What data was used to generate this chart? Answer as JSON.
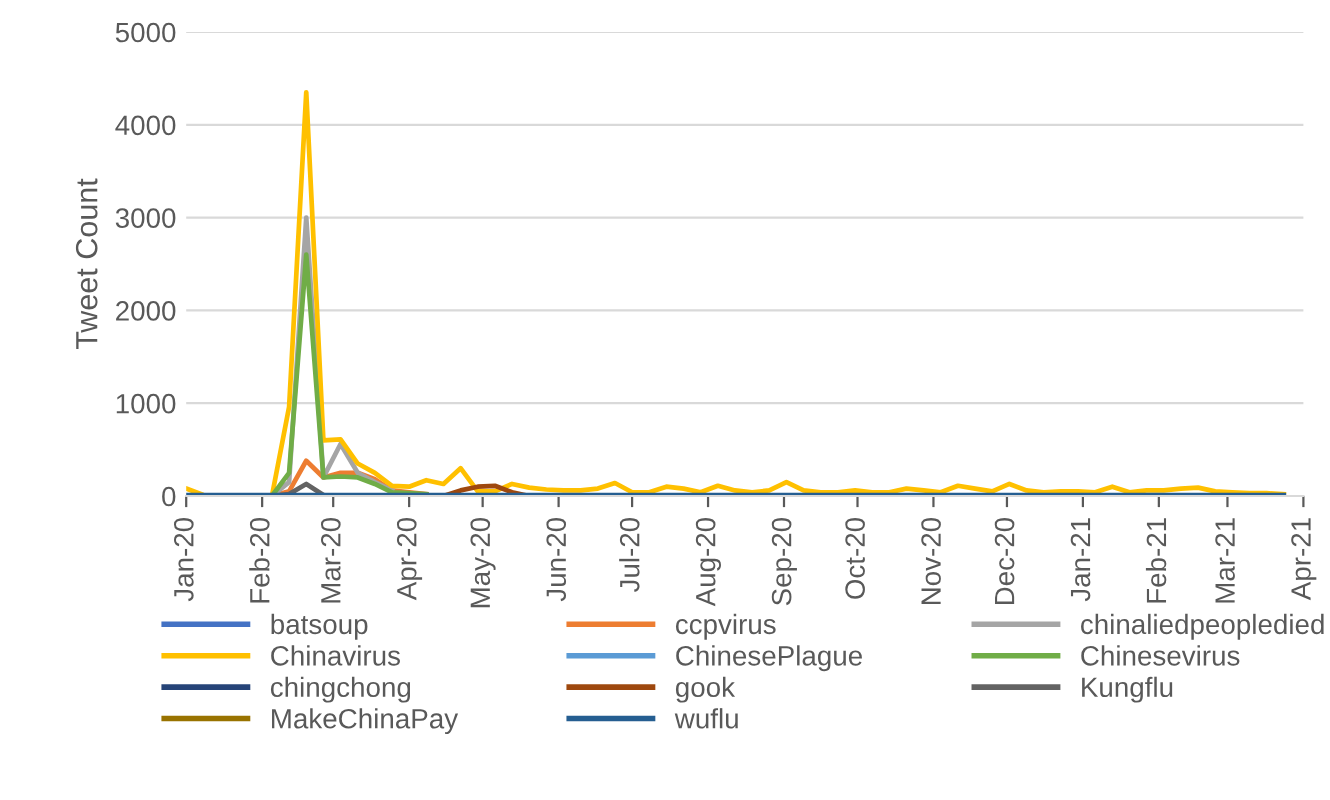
{
  "chart_data": {
    "type": "line",
    "ylabel": "Tweet Count",
    "x": [
      "2020-01-01",
      "2020-01-08",
      "2020-01-15",
      "2020-01-22",
      "2020-01-29",
      "2020-02-05",
      "2020-02-12",
      "2020-02-19",
      "2020-02-26",
      "2020-03-04",
      "2020-03-11",
      "2020-03-18",
      "2020-03-25",
      "2020-04-01",
      "2020-04-08",
      "2020-04-15",
      "2020-04-22",
      "2020-04-29",
      "2020-05-06",
      "2020-05-13",
      "2020-05-20",
      "2020-05-27",
      "2020-06-03",
      "2020-06-10",
      "2020-06-17",
      "2020-06-24",
      "2020-07-01",
      "2020-07-08",
      "2020-07-15",
      "2020-07-22",
      "2020-07-29",
      "2020-08-05",
      "2020-08-12",
      "2020-08-19",
      "2020-08-26",
      "2020-09-02",
      "2020-09-09",
      "2020-09-16",
      "2020-09-23",
      "2020-09-30",
      "2020-10-07",
      "2020-10-14",
      "2020-10-21",
      "2020-10-28",
      "2020-11-04",
      "2020-11-11",
      "2020-11-18",
      "2020-11-25",
      "2020-12-02",
      "2020-12-09",
      "2020-12-16",
      "2020-12-23",
      "2020-12-30",
      "2021-01-06",
      "2021-01-13",
      "2021-01-20",
      "2021-01-27",
      "2021-02-03",
      "2021-02-10",
      "2021-02-17",
      "2021-02-24",
      "2021-03-03",
      "2021-03-10",
      "2021-03-17",
      "2021-03-24"
    ],
    "xlim": [
      "2020-01-01",
      "2021-04-01"
    ],
    "xticks": [
      {
        "value": "2020-01-01",
        "label": "Jan-20"
      },
      {
        "value": "2020-02-01",
        "label": "Feb-20"
      },
      {
        "value": "2020-03-01",
        "label": "Mar-20"
      },
      {
        "value": "2020-04-01",
        "label": "Apr-20"
      },
      {
        "value": "2020-05-01",
        "label": "May-20"
      },
      {
        "value": "2020-06-01",
        "label": "Jun-20"
      },
      {
        "value": "2020-07-01",
        "label": "Jul-20"
      },
      {
        "value": "2020-08-01",
        "label": "Aug-20"
      },
      {
        "value": "2020-09-01",
        "label": "Sep-20"
      },
      {
        "value": "2020-10-01",
        "label": "Oct-20"
      },
      {
        "value": "2020-11-01",
        "label": "Nov-20"
      },
      {
        "value": "2020-12-01",
        "label": "Dec-20"
      },
      {
        "value": "2021-01-01",
        "label": "Jan-21"
      },
      {
        "value": "2021-02-01",
        "label": "Feb-21"
      },
      {
        "value": "2021-03-01",
        "label": "Mar-21"
      },
      {
        "value": "2021-04-01",
        "label": "Apr-21"
      }
    ],
    "ylim": [
      0,
      5000
    ],
    "yticks": [
      0,
      1000,
      2000,
      3000,
      4000,
      5000
    ],
    "grid": "y",
    "legend": "bottom",
    "marker": "none",
    "line_style": "solid",
    "series": [
      {
        "name": "batsoup",
        "color": "#4472c4",
        "values": [
          null,
          null,
          null,
          null,
          null,
          null,
          null,
          null,
          null,
          null,
          null,
          null,
          null,
          null,
          null,
          null,
          null,
          null,
          null,
          null,
          null,
          null,
          null,
          null,
          null,
          null,
          null,
          null,
          null,
          null,
          null,
          null,
          null,
          null,
          null,
          null,
          null,
          null,
          null,
          null,
          null,
          null,
          null,
          null,
          null,
          null,
          null,
          null,
          null,
          null,
          null,
          null,
          null,
          null,
          null,
          null,
          null,
          null,
          null,
          null,
          null,
          null,
          null,
          null,
          null
        ]
      },
      {
        "name": "ccpvirus",
        "color": "#ed7d31",
        "values": [
          null,
          null,
          null,
          null,
          null,
          0,
          50,
          380,
          200,
          250,
          250,
          180,
          60,
          40,
          20,
          null,
          null,
          null,
          null,
          null,
          null,
          null,
          null,
          null,
          null,
          null,
          null,
          null,
          null,
          null,
          null,
          null,
          null,
          null,
          null,
          null,
          null,
          null,
          null,
          null,
          null,
          null,
          null,
          null,
          null,
          null,
          null,
          null,
          null,
          null,
          null,
          null,
          null,
          null,
          null,
          null,
          null,
          null,
          null,
          null,
          null,
          null,
          null,
          null,
          null
        ]
      },
      {
        "name": "chinaliedpeopledied",
        "color": "#a5a5a5",
        "values": [
          null,
          null,
          null,
          null,
          null,
          0,
          150,
          3000,
          200,
          560,
          250,
          150,
          60,
          null,
          null,
          null,
          null,
          null,
          null,
          null,
          null,
          null,
          null,
          null,
          null,
          null,
          null,
          null,
          null,
          null,
          null,
          null,
          null,
          null,
          null,
          null,
          null,
          null,
          null,
          null,
          null,
          null,
          null,
          null,
          null,
          null,
          null,
          null,
          null,
          null,
          null,
          null,
          null,
          null,
          null,
          null,
          null,
          null,
          null,
          null,
          null,
          null,
          null,
          null,
          null
        ]
      },
      {
        "name": "Chinavirus",
        "color": "#ffc000",
        "values": [
          80,
          10,
          0,
          0,
          0,
          0,
          960,
          4350,
          600,
          610,
          350,
          250,
          110,
          100,
          170,
          130,
          300,
          50,
          50,
          130,
          90,
          70,
          60,
          60,
          80,
          140,
          40,
          40,
          100,
          80,
          40,
          110,
          60,
          40,
          60,
          150,
          60,
          40,
          40,
          60,
          40,
          40,
          80,
          60,
          40,
          110,
          80,
          50,
          130,
          60,
          40,
          50,
          50,
          40,
          100,
          40,
          60,
          60,
          80,
          90,
          50,
          40,
          30,
          30,
          20
        ]
      },
      {
        "name": "ChinesePlague",
        "color": "#5b9bd5",
        "values": [
          null,
          null,
          null,
          null,
          null,
          null,
          null,
          null,
          null,
          null,
          null,
          null,
          null,
          null,
          null,
          null,
          null,
          null,
          null,
          null,
          null,
          null,
          null,
          null,
          null,
          null,
          null,
          null,
          null,
          null,
          null,
          null,
          null,
          null,
          null,
          null,
          null,
          null,
          null,
          null,
          null,
          null,
          null,
          null,
          null,
          null,
          null,
          null,
          null,
          null,
          null,
          null,
          null,
          null,
          null,
          null,
          null,
          null,
          null,
          null,
          null,
          null,
          null,
          null,
          null
        ]
      },
      {
        "name": "Chinesevirus",
        "color": "#70ad47",
        "values": [
          null,
          null,
          null,
          null,
          null,
          0,
          250,
          2600,
          200,
          210,
          200,
          130,
          40,
          30,
          20,
          null,
          null,
          null,
          null,
          null,
          null,
          null,
          null,
          null,
          null,
          null,
          null,
          null,
          null,
          null,
          null,
          null,
          null,
          null,
          null,
          null,
          null,
          null,
          null,
          null,
          null,
          null,
          null,
          null,
          null,
          null,
          null,
          null,
          null,
          null,
          null,
          null,
          null,
          null,
          null,
          null,
          null,
          null,
          null,
          null,
          null,
          null,
          null,
          null,
          null
        ]
      },
      {
        "name": "chingchong",
        "color": "#264478",
        "values": [
          null,
          null,
          null,
          null,
          null,
          null,
          null,
          null,
          null,
          null,
          null,
          null,
          null,
          null,
          null,
          null,
          null,
          null,
          null,
          null,
          null,
          null,
          null,
          null,
          null,
          null,
          null,
          null,
          null,
          null,
          null,
          null,
          null,
          null,
          null,
          null,
          null,
          null,
          null,
          null,
          null,
          null,
          null,
          null,
          null,
          null,
          null,
          null,
          null,
          null,
          null,
          null,
          null,
          null,
          null,
          null,
          null,
          null,
          null,
          null,
          null,
          null,
          null,
          null,
          null
        ]
      },
      {
        "name": "gook",
        "color": "#9e480e",
        "values": [
          null,
          null,
          null,
          null,
          null,
          null,
          null,
          null,
          null,
          null,
          null,
          null,
          null,
          null,
          null,
          0,
          60,
          100,
          110,
          40,
          0,
          null,
          null,
          null,
          null,
          null,
          null,
          null,
          null,
          null,
          null,
          null,
          null,
          null,
          null,
          null,
          null,
          null,
          null,
          null,
          null,
          null,
          null,
          null,
          null,
          null,
          null,
          null,
          null,
          null,
          null,
          null,
          null,
          null,
          null,
          null,
          null,
          null,
          null,
          null,
          null,
          null,
          null,
          null,
          null
        ]
      },
      {
        "name": "Kungflu",
        "color": "#636363",
        "values": [
          null,
          null,
          null,
          null,
          null,
          0,
          20,
          130,
          10,
          0,
          null,
          null,
          null,
          null,
          null,
          null,
          null,
          null,
          null,
          null,
          null,
          null,
          null,
          null,
          null,
          null,
          null,
          null,
          null,
          null,
          null,
          null,
          null,
          null,
          null,
          null,
          null,
          null,
          null,
          null,
          null,
          null,
          null,
          null,
          null,
          null,
          null,
          null,
          null,
          null,
          null,
          null,
          null,
          null,
          null,
          null,
          null,
          null,
          null,
          null,
          null,
          null,
          null,
          null,
          null
        ]
      },
      {
        "name": "MakeChinaPay",
        "color": "#997300",
        "values": [
          null,
          null,
          null,
          null,
          null,
          null,
          null,
          null,
          null,
          null,
          null,
          null,
          null,
          null,
          null,
          null,
          null,
          null,
          null,
          null,
          null,
          null,
          null,
          null,
          null,
          null,
          null,
          null,
          null,
          null,
          null,
          null,
          null,
          null,
          null,
          null,
          null,
          null,
          null,
          null,
          null,
          null,
          null,
          null,
          null,
          null,
          null,
          null,
          null,
          null,
          null,
          null,
          null,
          null,
          null,
          null,
          null,
          null,
          null,
          null,
          null,
          null,
          null,
          null,
          null
        ]
      },
      {
        "name": "wuflu",
        "color": "#255e91",
        "values": [
          10,
          10,
          10,
          10,
          10,
          10,
          10,
          10,
          10,
          10,
          10,
          10,
          10,
          10,
          10,
          10,
          10,
          10,
          10,
          10,
          10,
          10,
          10,
          10,
          10,
          10,
          10,
          10,
          10,
          10,
          10,
          10,
          10,
          10,
          10,
          10,
          10,
          10,
          10,
          10,
          10,
          10,
          10,
          10,
          10,
          10,
          10,
          10,
          10,
          10,
          10,
          10,
          10,
          10,
          10,
          10,
          10,
          10,
          10,
          10,
          10,
          10,
          10,
          10,
          10
        ]
      }
    ]
  }
}
